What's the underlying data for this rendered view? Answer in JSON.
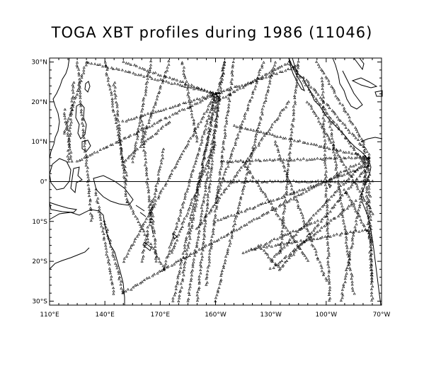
{
  "title": "TOGA XBT profiles during 1986 (11046)",
  "map": {
    "lon_range_east": [
      110,
      290
    ],
    "lat_range": [
      -31,
      31
    ],
    "x_ticks": [
      {
        "lon": 110,
        "label": "110°E"
      },
      {
        "lon": 140,
        "label": "140°E"
      },
      {
        "lon": 170,
        "label": "170°E"
      },
      {
        "lon": 200,
        "label": "160°W"
      },
      {
        "lon": 230,
        "label": "130°W"
      },
      {
        "lon": 260,
        "label": "100°W"
      },
      {
        "lon": 290,
        "label": "70°W"
      }
    ],
    "y_ticks": [
      {
        "lat": 30,
        "label": "30°N"
      },
      {
        "lat": 20,
        "label": "20°N"
      },
      {
        "lat": 10,
        "label": "10°N"
      },
      {
        "lat": 0,
        "label": "0°"
      },
      {
        "lat": -10,
        "label": "10°S"
      },
      {
        "lat": -20,
        "label": "20°S"
      },
      {
        "lat": -30,
        "label": "30°S"
      }
    ],
    "equator_line": true,
    "marker": "triangle",
    "marker_color": "#000000",
    "coast_color": "#000000",
    "ship_tracks": [
      [
        [
          200,
          22
        ],
        [
          172,
          -22
        ]
      ],
      [
        [
          200,
          22
        ],
        [
          150,
          30
        ]
      ],
      [
        [
          200,
          22
        ],
        [
          245,
          29
        ]
      ],
      [
        [
          200,
          22
        ],
        [
          180,
          -30
        ]
      ],
      [
        [
          202,
          22
        ],
        [
          190,
          -30
        ]
      ],
      [
        [
          205,
          30
        ],
        [
          185,
          -30
        ]
      ],
      [
        [
          210,
          30
        ],
        [
          195,
          -26
        ]
      ],
      [
        [
          232,
          30
        ],
        [
          200,
          -30
        ]
      ],
      [
        [
          240,
          30
        ],
        [
          200,
          20
        ]
      ],
      [
        [
          248,
          26
        ],
        [
          283,
          7
        ]
      ],
      [
        [
          255,
          30
        ],
        [
          280,
          10
        ]
      ],
      [
        [
          283,
          6
        ],
        [
          172,
          -22
        ]
      ],
      [
        [
          283,
          6
        ],
        [
          230,
          -20
        ]
      ],
      [
        [
          283,
          4
        ],
        [
          235,
          -22
        ]
      ],
      [
        [
          284,
          -12
        ],
        [
          220,
          -17
        ]
      ],
      [
        [
          276,
          -5
        ],
        [
          230,
          -22
        ]
      ],
      [
        [
          283,
          6
        ],
        [
          268,
          -30
        ]
      ],
      [
        [
          283,
          6
        ],
        [
          285,
          -30
        ]
      ],
      [
        [
          225,
          -17
        ],
        [
          235,
          -22
        ]
      ],
      [
        [
          125,
          30
        ],
        [
          133,
          -10
        ]
      ],
      [
        [
          123,
          25
        ],
        [
          120,
          5
        ]
      ],
      [
        [
          118,
          18
        ],
        [
          122,
          5
        ]
      ],
      [
        [
          140,
          30
        ],
        [
          152,
          0
        ]
      ],
      [
        [
          145,
          25
        ],
        [
          152,
          -5
        ]
      ],
      [
        [
          152,
          -5
        ],
        [
          172,
          -22
        ]
      ],
      [
        [
          160,
          15
        ],
        [
          165,
          -10
        ]
      ],
      [
        [
          165,
          -5
        ],
        [
          168,
          -20
        ]
      ],
      [
        [
          150,
          15
        ],
        [
          200,
          22
        ]
      ],
      [
        [
          125,
          5
        ],
        [
          200,
          22
        ]
      ],
      [
        [
          150,
          -20
        ],
        [
          200,
          22
        ]
      ],
      [
        [
          130,
          30
        ],
        [
          200,
          22
        ]
      ],
      [
        [
          240,
          30
        ],
        [
          280,
          5
        ]
      ],
      [
        [
          226,
          30
        ],
        [
          200,
          -5
        ]
      ],
      [
        [
          245,
          30
        ],
        [
          235,
          -18
        ]
      ],
      [
        [
          215,
          -18
        ],
        [
          255,
          -10
        ]
      ],
      [
        [
          205,
          0
        ],
        [
          285,
          0
        ]
      ],
      [
        [
          203,
          5
        ],
        [
          283,
          6
        ]
      ],
      [
        [
          210,
          14
        ],
        [
          283,
          6
        ]
      ],
      [
        [
          200,
          -10
        ],
        [
          283,
          4
        ]
      ],
      [
        [
          250,
          20
        ],
        [
          285,
          -8
        ]
      ],
      [
        [
          262,
          15
        ],
        [
          275,
          -28
        ]
      ],
      [
        [
          160,
          -20
        ],
        [
          172,
          8
        ]
      ],
      [
        [
          176,
          -18
        ],
        [
          200,
          10
        ]
      ],
      [
        [
          177,
          -30
        ],
        [
          205,
          30
        ]
      ],
      [
        [
          258,
          26
        ],
        [
          262,
          -30
        ]
      ],
      [
        [
          232,
          10
        ],
        [
          260,
          -25
        ]
      ],
      [
        [
          135,
          -2
        ],
        [
          145,
          -28
        ]
      ],
      [
        [
          140,
          -10
        ],
        [
          150,
          -28
        ]
      ],
      [
        [
          150,
          -28
        ],
        [
          172,
          -22
        ]
      ],
      [
        [
          175,
          30
        ],
        [
          160,
          10
        ]
      ],
      [
        [
          182,
          30
        ],
        [
          190,
          10
        ]
      ],
      [
        [
          165,
          30
        ],
        [
          155,
          5
        ]
      ],
      [
        [
          190,
          -12
        ],
        [
          240,
          20
        ]
      ],
      [
        [
          215,
          5
        ],
        [
          250,
          -20
        ]
      ],
      [
        [
          118,
          12
        ],
        [
          130,
          30
        ]
      ],
      [
        [
          150,
          5
        ],
        [
          175,
          15
        ]
      ],
      [
        [
          270,
          -2
        ],
        [
          285,
          -15
        ]
      ],
      [
        [
          280,
          10
        ],
        [
          285,
          -25
        ]
      ]
    ]
  }
}
